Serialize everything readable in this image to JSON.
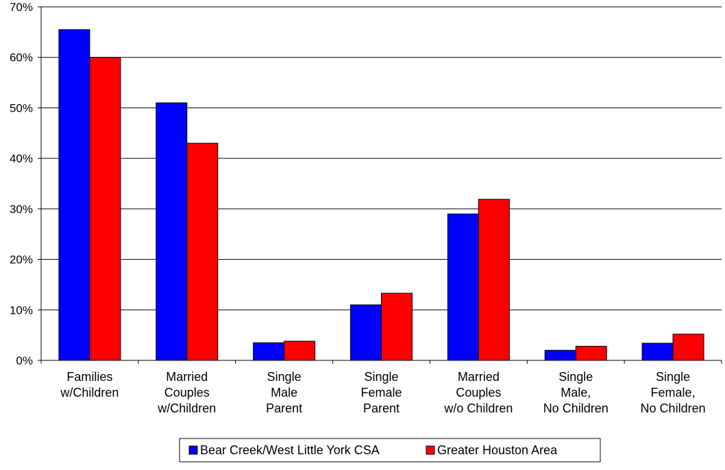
{
  "chart_data": {
    "type": "bar",
    "categories": [
      [
        "Families",
        "w/Children"
      ],
      [
        "Married",
        "Couples",
        "w/Children"
      ],
      [
        "Single",
        "Male",
        "Parent"
      ],
      [
        "Single",
        "Female",
        "Parent"
      ],
      [
        "Married",
        "Couples",
        "w/o Children"
      ],
      [
        "Single",
        "Male,",
        "No Children"
      ],
      [
        "Single",
        "Female,",
        "No Children"
      ]
    ],
    "series": [
      {
        "name": "Bear Creek/West Little York CSA",
        "color": "#0000ff",
        "values": [
          65.5,
          51,
          3.5,
          11,
          29,
          2,
          3.4
        ]
      },
      {
        "name": "Greater Houston Area",
        "color": "#ff0000",
        "values": [
          60,
          43,
          3.8,
          13.3,
          31.9,
          2.8,
          5.2
        ]
      }
    ],
    "ylim": [
      0,
      70
    ],
    "yticks": [
      "0%",
      "10%",
      "20%",
      "30%",
      "40%",
      "50%",
      "60%",
      "70%"
    ],
    "grid": true,
    "legend_position": "bottom-center"
  }
}
